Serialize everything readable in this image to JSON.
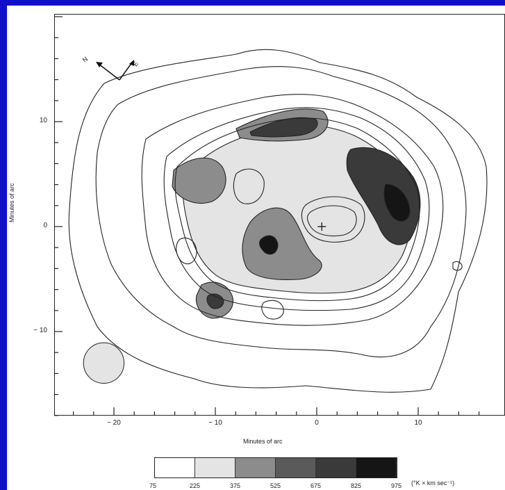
{
  "chart_data": {
    "type": "contour",
    "xlabel": "Minutes of arc",
    "ylabel": "Minutes of arc",
    "xticks": [
      -20,
      -10,
      0,
      10
    ],
    "yticks": [
      10,
      0,
      -10
    ],
    "xlim": [
      -25,
      18
    ],
    "ylim": [
      -18,
      20
    ],
    "colorbar": {
      "levels": [
        "75",
        "225",
        "375",
        "525",
        "675",
        "825",
        "975"
      ],
      "unit": "(°K × km sec⁻¹)",
      "colors": [
        "#ffffff",
        "#ffffff",
        "#e4e4e4",
        "#8c8c8c",
        "#5a5a5a",
        "#3a3a3a",
        "#151515"
      ]
    },
    "compass": {
      "labels": [
        "N",
        "E"
      ]
    },
    "marker": {
      "symbol": "+",
      "x": 0.5,
      "y": 0
    },
    "beam": {
      "x": -21,
      "y": -13,
      "radius_arcmin": 2
    }
  }
}
